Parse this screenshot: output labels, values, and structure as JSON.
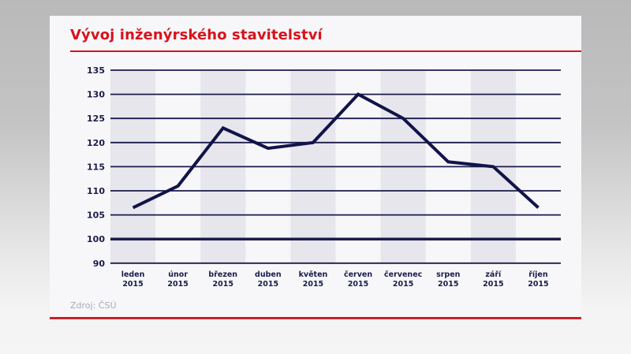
{
  "title": "Vývoj inženýrského stavitelství",
  "source": "Zdroj: ČSÚ",
  "colors": {
    "title": "#d7131d",
    "line": "#12134a",
    "grid": "#1a1b4b",
    "band": "#e6e6ec",
    "card": "#f7f7f9",
    "source": "#a8a8b8",
    "bottom_rule": "#cc2229"
  },
  "chart_data": {
    "type": "line",
    "title": "Vývoj inženýrského stavitelství",
    "xlabel": "",
    "ylabel": "",
    "categories": [
      "leden 2015",
      "únor 2015",
      "březen 2015",
      "duben 2015",
      "květen 2015",
      "červen 2015",
      "červenec 2015",
      "srpen 2015",
      "září 2015",
      "říjen 2015"
    ],
    "category_lines": [
      [
        "leden",
        "2015"
      ],
      [
        "únor",
        "2015"
      ],
      [
        "březen",
        "2015"
      ],
      [
        "duben",
        "2015"
      ],
      [
        "květen",
        "2015"
      ],
      [
        "červen",
        "2015"
      ],
      [
        "červenec",
        "2015"
      ],
      [
        "srpen",
        "2015"
      ],
      [
        "září",
        "2015"
      ],
      [
        "říjen",
        "2015"
      ]
    ],
    "series": [
      {
        "name": "Vývoj inženýrského stavitelství",
        "values": [
          106.5,
          111,
          123,
          118.8,
          120,
          130,
          125,
          116,
          115,
          106.5
        ]
      }
    ],
    "y_ticks": [
      135,
      130,
      125,
      120,
      115,
      110,
      105,
      100,
      90
    ],
    "ylim": [
      90,
      135
    ],
    "baseline": 100,
    "grid": true,
    "legend": "none",
    "alternating_column_bands": true
  }
}
